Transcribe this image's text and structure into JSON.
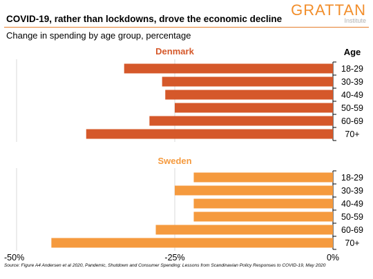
{
  "title": "COVID-19, rather than lockdowns, drove the economic decline",
  "subtitle": "Change in spending by age group, percentage",
  "logo": {
    "main": "GRATTAN",
    "sub": "Institute"
  },
  "source": "Source: Figure A4 Andersen et al 2020, Pandemic, Shutdown and Consumer Spending: Lessons from Scandinavian Policy Responses to COVID-19, May 2020",
  "colors": {
    "denmark": "#d5582a",
    "sweden": "#f59a3e",
    "accent": "#e57d2b"
  },
  "chart_data": {
    "type": "bar",
    "orientation": "horizontal",
    "categories_header": "Age",
    "categories": [
      "18-29",
      "30-39",
      "40-49",
      "50-59",
      "60-69",
      "70+"
    ],
    "xlim": [
      -50,
      0
    ],
    "xticks": [
      -50,
      -25,
      0
    ],
    "xtick_labels": [
      "-50%",
      "-25%",
      "0%"
    ],
    "grid": "vertical",
    "series": [
      {
        "name": "Denmark",
        "values": [
          -33,
          -27,
          -26.5,
          -25,
          -29,
          -39
        ]
      },
      {
        "name": "Sweden",
        "values": [
          -22,
          -25,
          -22,
          -22,
          -28,
          -44.5
        ]
      }
    ]
  }
}
